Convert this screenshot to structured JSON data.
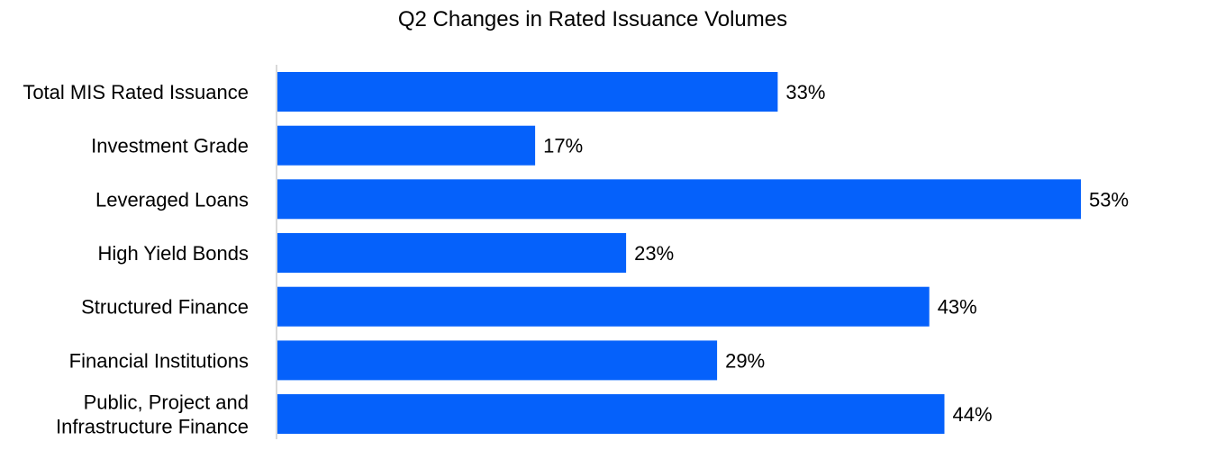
{
  "chart_data": {
    "type": "bar",
    "orientation": "horizontal",
    "title": "Q2 Changes in Rated Issuance Volumes",
    "categories": [
      "Total MIS Rated Issuance",
      "Investment Grade",
      "Leveraged Loans",
      "High Yield Bonds",
      "Structured Finance",
      "Financial Institutions",
      "Public, Project and Infrastructure Finance"
    ],
    "category_lines": [
      [
        "Total MIS Rated Issuance"
      ],
      [
        "Investment Grade"
      ],
      [
        "Leveraged Loans"
      ],
      [
        "High Yield Bonds"
      ],
      [
        "Structured Finance"
      ],
      [
        "Financial Institutions"
      ],
      [
        "Public, Project and",
        "Infrastructure Finance"
      ]
    ],
    "values": [
      33,
      17,
      53,
      23,
      43,
      29,
      44
    ],
    "data_labels": [
      "33%",
      "17%",
      "53%",
      "23%",
      "43%",
      "29%",
      "44%"
    ],
    "unit": "%",
    "xlabel": "",
    "ylabel": "",
    "xlim": [
      0,
      53
    ],
    "grid": false,
    "legend": "none",
    "bar_color": "#0561FB",
    "axis_color": "#D9D9D9"
  }
}
